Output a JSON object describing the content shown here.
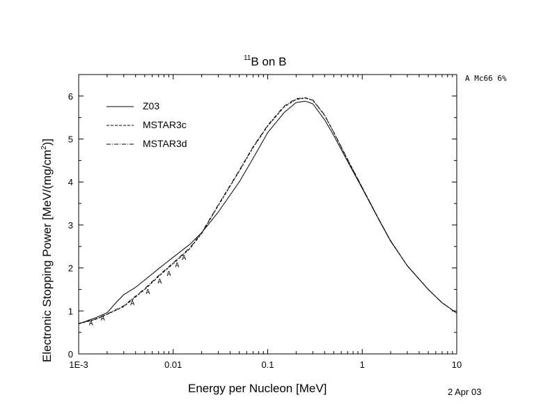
{
  "chart_data": {
    "type": "line",
    "title_sup": "11",
    "title_rest": "B on B",
    "corner_note": "A Mc66  6%",
    "date": "2 Apr 03",
    "xlabel": "Energy per Nucleon [MeV]",
    "ylabel_main": "Electronic Stopping Power [MeV/(mg/cm",
    "ylabel_sup": "2",
    "ylabel_end": ")]",
    "x_scale": "log",
    "xlim": [
      0.001,
      10
    ],
    "ylim": [
      0,
      6.5
    ],
    "x_ticks": [
      0.001,
      0.01,
      0.1,
      1,
      10
    ],
    "x_tick_labels": [
      "1E-3",
      "0.01",
      "0.1",
      "1",
      "10"
    ],
    "y_ticks": [
      0,
      1,
      2,
      3,
      4,
      5,
      6
    ],
    "y_tick_labels": [
      "0",
      "1",
      "2",
      "3",
      "4",
      "5",
      "6"
    ],
    "grid": false,
    "legend_position": "top-left",
    "series": [
      {
        "name": "Z03",
        "style": "solid",
        "x": [
          0.001,
          0.0015,
          0.002,
          0.0025,
          0.003,
          0.004,
          0.005,
          0.007,
          0.01,
          0.015,
          0.02,
          0.03,
          0.05,
          0.07,
          0.1,
          0.15,
          0.2,
          0.25,
          0.3,
          0.4,
          0.5,
          0.7,
          1,
          1.5,
          2,
          3,
          5,
          7,
          10
        ],
        "y": [
          0.7,
          0.84,
          0.96,
          1.2,
          1.38,
          1.55,
          1.72,
          1.98,
          2.25,
          2.55,
          2.82,
          3.3,
          4.0,
          4.55,
          5.15,
          5.62,
          5.85,
          5.88,
          5.82,
          5.45,
          5.08,
          4.48,
          3.85,
          3.12,
          2.62,
          2.05,
          1.5,
          1.19,
          0.95
        ]
      },
      {
        "name": "MSTAR3c",
        "style": "dashed",
        "x": [
          0.001,
          0.0015,
          0.002,
          0.003,
          0.005,
          0.007,
          0.01,
          0.015,
          0.02,
          0.03,
          0.05,
          0.07,
          0.1,
          0.15,
          0.2,
          0.25,
          0.3,
          0.4,
          0.5,
          0.7,
          1,
          1.5,
          2,
          3,
          5,
          7,
          10
        ],
        "y": [
          0.7,
          0.8,
          0.92,
          1.1,
          1.5,
          1.8,
          2.1,
          2.45,
          2.8,
          3.45,
          4.25,
          4.8,
          5.3,
          5.75,
          5.92,
          5.95,
          5.9,
          5.55,
          5.15,
          4.52,
          3.87,
          3.13,
          2.63,
          2.05,
          1.5,
          1.19,
          0.95
        ]
      },
      {
        "name": "MSTAR3d",
        "style": "dashdot",
        "x": [
          0.001,
          0.0015,
          0.002,
          0.003,
          0.005,
          0.007,
          0.01,
          0.015,
          0.02,
          0.03,
          0.05,
          0.07,
          0.1,
          0.15,
          0.2,
          0.25,
          0.3,
          0.4,
          0.5,
          0.7,
          1,
          1.5,
          2,
          3,
          5,
          7,
          10
        ],
        "y": [
          0.71,
          0.81,
          0.93,
          1.12,
          1.52,
          1.82,
          2.12,
          2.47,
          2.82,
          3.47,
          4.27,
          4.82,
          5.32,
          5.77,
          5.94,
          5.96,
          5.91,
          5.56,
          5.16,
          4.53,
          3.87,
          3.13,
          2.63,
          2.05,
          1.5,
          1.19,
          0.95
        ]
      }
    ],
    "markers": {
      "label": "A",
      "x": [
        0.00135,
        0.0018,
        0.0037,
        0.0054,
        0.0072,
        0.009,
        0.011,
        0.013
      ],
      "y": [
        0.73,
        0.84,
        1.2,
        1.46,
        1.7,
        1.88,
        2.08,
        2.25
      ]
    }
  }
}
